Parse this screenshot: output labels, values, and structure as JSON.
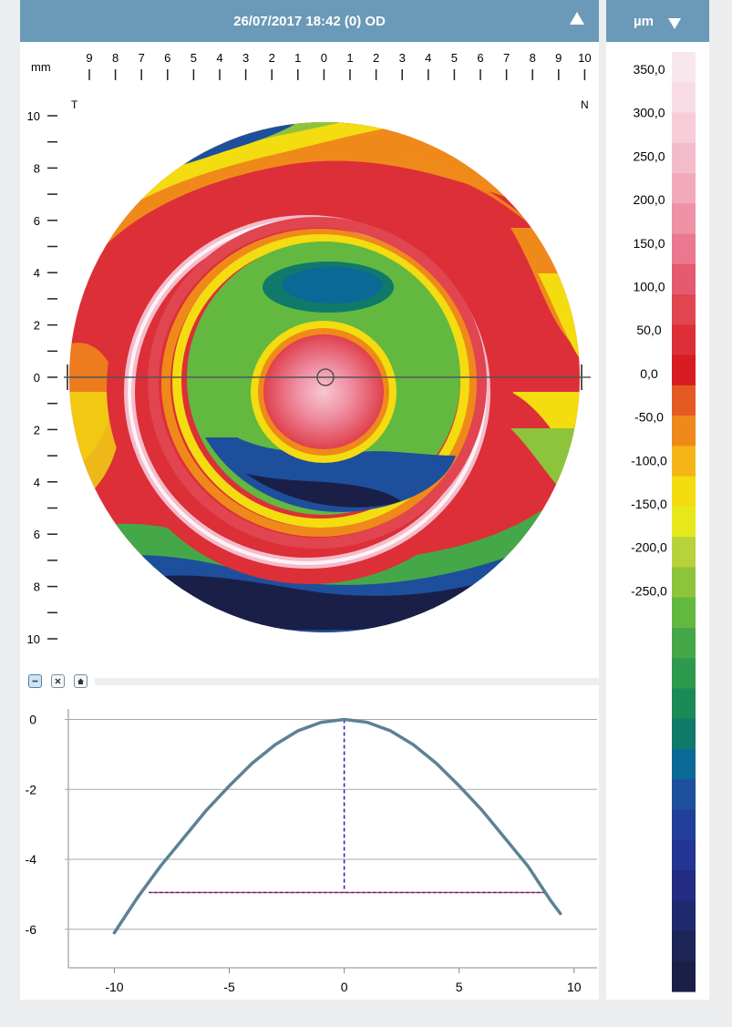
{
  "header": {
    "title": "26/07/2017 18:42 (0) OD"
  },
  "legend": {
    "unit": "µm",
    "labels": [
      "350,0",
      "300,0",
      "250,0",
      "200,0",
      "150,0",
      "100,0",
      "50,0",
      "0,0",
      "-50,0",
      "-100,0",
      "-150,0",
      "-200,0",
      "-250,0"
    ],
    "colors": [
      "#f8e8ee",
      "#f7dce6",
      "#f6cdd9",
      "#f4bccb",
      "#f2a9b9",
      "#ef92a6",
      "#ec7890",
      "#e55a6e",
      "#e04550",
      "#dc2f38",
      "#d81c22",
      "#e55a22",
      "#ef8a1a",
      "#f5b418",
      "#f3dc10",
      "#e6e81c",
      "#b8d23a",
      "#8dc43c",
      "#63b840",
      "#45a848",
      "#2e9a4e",
      "#1a8a56",
      "#0f7a6a",
      "#0c6896",
      "#1e4f9c",
      "#22409a",
      "#233594",
      "#222c82",
      "#1e2a6e",
      "#1c2458",
      "#1a1f48"
    ]
  },
  "map": {
    "mm_label": "mm",
    "top_ticks": [
      "9",
      "8",
      "7",
      "6",
      "5",
      "4",
      "3",
      "2",
      "1",
      "0",
      "1",
      "2",
      "3",
      "4",
      "5",
      "6",
      "7",
      "8",
      "9",
      "10"
    ],
    "left_ticks": [
      "10",
      "8",
      "6",
      "4",
      "2",
      "0",
      "2",
      "4",
      "6",
      "8",
      "10"
    ],
    "temporal_label": "T",
    "nasal_label": "N"
  },
  "toolbar": {
    "icons": [
      "minus-icon",
      "close-x-icon",
      "home-icon"
    ]
  },
  "chart_data": {
    "type": "line",
    "series": [
      {
        "x": [
          -10,
          -9,
          -8,
          -7,
          -6,
          -5,
          -4,
          -3,
          -2,
          -1,
          0,
          1,
          2,
          3,
          4,
          5,
          6,
          7,
          8,
          9,
          9.4
        ],
        "y": [
          -6.1,
          -5.1,
          -4.2,
          -3.4,
          -2.6,
          -1.9,
          -1.25,
          -0.72,
          -0.32,
          -0.08,
          0,
          -0.08,
          -0.32,
          -0.72,
          -1.25,
          -1.9,
          -2.6,
          -3.4,
          -4.2,
          -5.2,
          -5.55
        ]
      }
    ],
    "xticks": [
      "-10",
      "-5",
      "0",
      "5",
      "10"
    ],
    "yticks": [
      "0",
      "-2",
      "-4",
      "-6"
    ],
    "xlim": [
      -12,
      11
    ],
    "ylim": [
      -7.1,
      0.3
    ],
    "grid": true,
    "reference_lines": {
      "vertical_x": 0,
      "horizontal_y": -4.95,
      "horizontal_from": -8.5,
      "horizontal_to": 8.8
    }
  }
}
